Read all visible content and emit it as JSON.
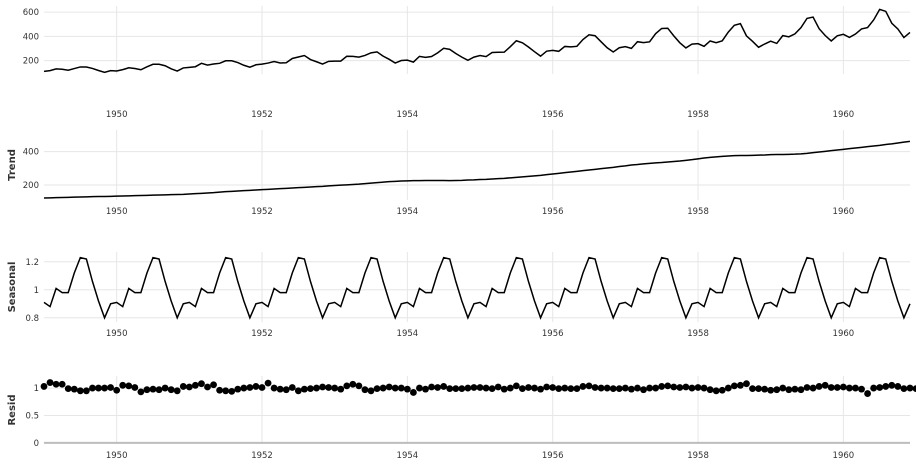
{
  "chart_data": [
    {
      "type": "line",
      "title": "",
      "ylabel": "",
      "x_start": 1949,
      "x_step": 0.08333,
      "xlim": [
        1949.0,
        1960.9167
      ],
      "ylim": [
        90,
        650
      ],
      "xticks": [
        1950,
        1952,
        1954,
        1956,
        1958,
        1960
      ],
      "yticks": [
        200,
        400,
        600
      ],
      "grid": true,
      "values": [
        112,
        118,
        132,
        129,
        121,
        135,
        148,
        148,
        136,
        119,
        104,
        118,
        115,
        126,
        141,
        135,
        125,
        149,
        170,
        170,
        158,
        133,
        114,
        140,
        145,
        150,
        178,
        163,
        172,
        178,
        199,
        199,
        184,
        162,
        146,
        166,
        171,
        180,
        193,
        181,
        183,
        218,
        230,
        242,
        209,
        191,
        172,
        194,
        196,
        196,
        236,
        235,
        229,
        243,
        264,
        272,
        237,
        211,
        180,
        201,
        204,
        188,
        235,
        227,
        234,
        264,
        302,
        293,
        259,
        229,
        203,
        229,
        242,
        233,
        267,
        269,
        270,
        315,
        364,
        347,
        312,
        274,
        237,
        278,
        284,
        277,
        317,
        313,
        318,
        374,
        413,
        405,
        355,
        306,
        271,
        306,
        315,
        301,
        356,
        348,
        355,
        422,
        465,
        467,
        404,
        347,
        305,
        336,
        340,
        318,
        362,
        348,
        363,
        435,
        491,
        505,
        404,
        359,
        310,
        337,
        360,
        342,
        406,
        396,
        420,
        472,
        548,
        559,
        463,
        407,
        362,
        405,
        417,
        391,
        419,
        461,
        472,
        535,
        622,
        606,
        508,
        461,
        390,
        432
      ]
    },
    {
      "type": "line",
      "title": "",
      "ylabel": "Trend",
      "x_start": 1949,
      "x_step": 0.08333,
      "xlim": [
        1949.0,
        1960.9167
      ],
      "ylim": [
        110,
        530
      ],
      "xticks": [
        1950,
        1952,
        1954,
        1956,
        1958,
        1960
      ],
      "yticks": [
        200,
        400
      ],
      "grid": true,
      "values": [
        122,
        123,
        124,
        125,
        126,
        127,
        128,
        129,
        130,
        131,
        131,
        132,
        133,
        134,
        135,
        136,
        137,
        138,
        139,
        140,
        141,
        142,
        143,
        144,
        146,
        148,
        150,
        152,
        154,
        157,
        160,
        162,
        164,
        166,
        168,
        170,
        172,
        174,
        176,
        178,
        180,
        182,
        184,
        186,
        188,
        190,
        192,
        195,
        197,
        199,
        201,
        203,
        205,
        208,
        211,
        214,
        217,
        220,
        222,
        224,
        225,
        226,
        226,
        227,
        227,
        227,
        227,
        226,
        227,
        228,
        230,
        231,
        233,
        234,
        236,
        238,
        240,
        243,
        246,
        249,
        252,
        255,
        258,
        262,
        266,
        270,
        274,
        278,
        282,
        286,
        290,
        294,
        298,
        302,
        306,
        311,
        315,
        320,
        323,
        327,
        330,
        333,
        335,
        338,
        341,
        344,
        348,
        352,
        357,
        362,
        366,
        369,
        372,
        374,
        376,
        377,
        377,
        378,
        379,
        380,
        382,
        383,
        383,
        384,
        385,
        387,
        390,
        394,
        398,
        402,
        406,
        410,
        414,
        418,
        422,
        426,
        430,
        434,
        438,
        443,
        447,
        452,
        457,
        462
      ]
    },
    {
      "type": "line",
      "title": "",
      "ylabel": "Seasonal",
      "x_start": 1949,
      "x_step": 0.08333,
      "xlim": [
        1949.0,
        1960.9167
      ],
      "ylim": [
        0.77,
        1.27
      ],
      "xticks": [
        1950,
        1952,
        1954,
        1956,
        1958,
        1960
      ],
      "yticks": [
        0.8,
        1.0,
        1.2
      ],
      "grid": true,
      "pattern": [
        0.91,
        0.88,
        1.01,
        0.98,
        0.98,
        1.12,
        1.23,
        1.22,
        1.06,
        0.92,
        0.8,
        0.9
      ]
    },
    {
      "type": "scatter",
      "title": "",
      "ylabel": "Resid",
      "x_start": 1949,
      "x_step": 0.08333,
      "xlim": [
        1949.0,
        1960.9167
      ],
      "ylim": [
        -0.02,
        1.22
      ],
      "xticks": [
        1950,
        1952,
        1954,
        1956,
        1958,
        1960
      ],
      "yticks": [
        0.0,
        0.5,
        1.0
      ],
      "grid": true,
      "baseline": 0.0,
      "values": [
        1.03,
        1.1,
        1.07,
        1.07,
        0.99,
        0.98,
        0.95,
        0.95,
        1.0,
        1.0,
        1.0,
        1.01,
        0.96,
        1.05,
        1.04,
        1.01,
        0.93,
        0.97,
        0.98,
        0.97,
        1.0,
        0.97,
        0.95,
        1.03,
        1.02,
        1.05,
        1.08,
        1.02,
        1.06,
        0.96,
        0.95,
        0.94,
        0.98,
        1.0,
        1.01,
        1.03,
        1.01,
        1.09,
        1.0,
        0.98,
        0.97,
        1.01,
        0.95,
        0.98,
        0.99,
        1.0,
        1.02,
        1.01,
        1.0,
        0.98,
        1.04,
        1.07,
        1.04,
        0.97,
        0.95,
        0.99,
        1.0,
        1.02,
        1.0,
        1.0,
        0.98,
        0.92,
        1.0,
        0.98,
        1.02,
        1.01,
        1.03,
        0.99,
        0.99,
        0.99,
        1.0,
        1.01,
        1.01,
        1.0,
        0.99,
        1.02,
        0.98,
        1.0,
        1.04,
        0.99,
        1.01,
        1.0,
        0.98,
        1.02,
        1.01,
        0.99,
        1.0,
        0.99,
        0.99,
        1.03,
        1.04,
        1.01,
        1.0,
        1.0,
        0.99,
        0.99,
        1.0,
        0.98,
        1.0,
        0.97,
        1.0,
        1.0,
        1.03,
        1.04,
        1.02,
        1.01,
        1.02,
        1.0,
        1.01,
        1.0,
        0.97,
        0.95,
        0.96,
        1.0,
        1.04,
        1.05,
        1.08,
        0.99,
        0.99,
        0.98,
        0.96,
        0.97,
        1.0,
        0.97,
        0.98,
        0.97,
        1.01,
        1.0,
        1.03,
        1.05,
        1.01,
        1.01,
        1.02,
        1.0,
        1.0,
        0.98,
        0.9,
        1.0,
        1.01,
        1.03,
        1.05,
        1.03,
        0.99,
        1.0,
        0.99,
        0.96
      ]
    }
  ]
}
